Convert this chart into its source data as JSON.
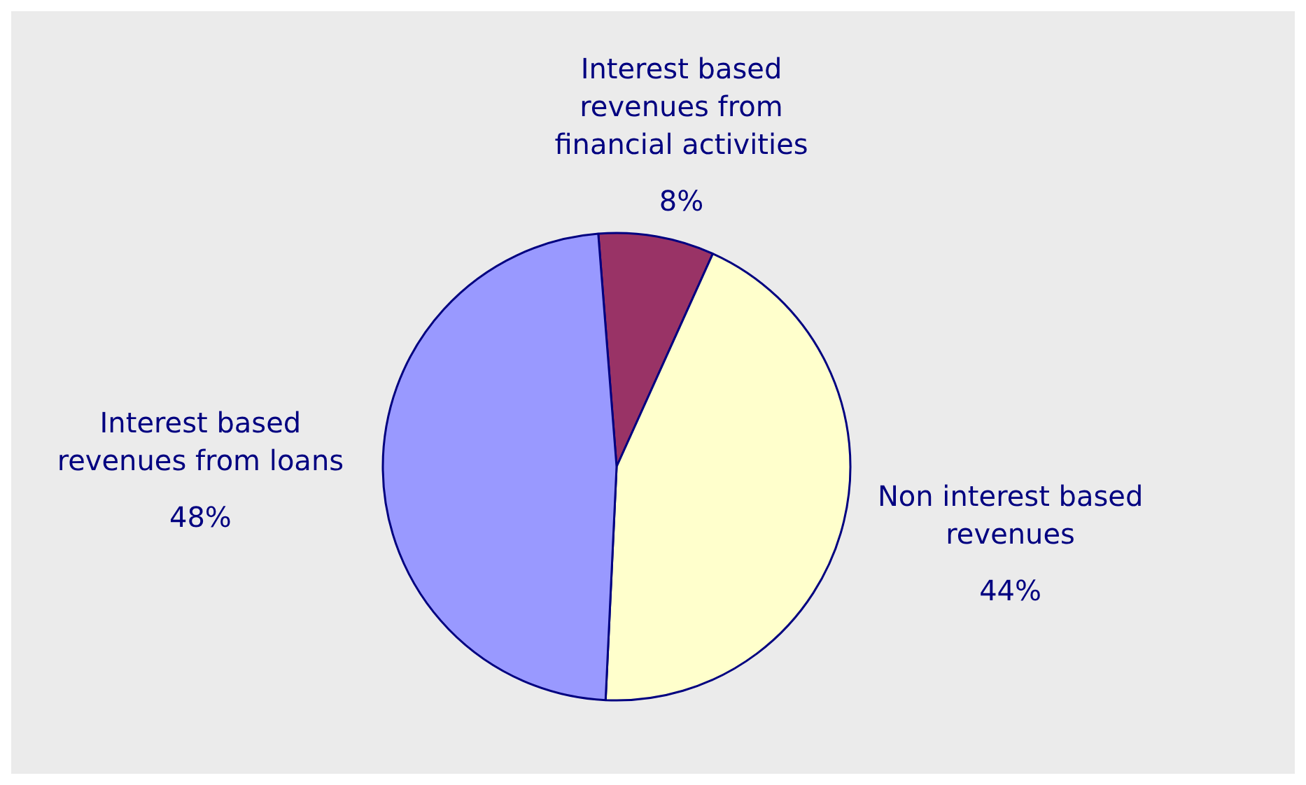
{
  "chart_data": {
    "type": "pie",
    "categories": [
      "Interest based revenues from financial activities",
      "Non interest based revenues",
      "Interest based revenues from loans"
    ],
    "values": [
      8,
      44,
      48
    ],
    "colors": [
      "#993366",
      "#ffffcc",
      "#9999ff"
    ],
    "value_labels": [
      "8%",
      "44%",
      "48%"
    ],
    "legend": false
  }
}
